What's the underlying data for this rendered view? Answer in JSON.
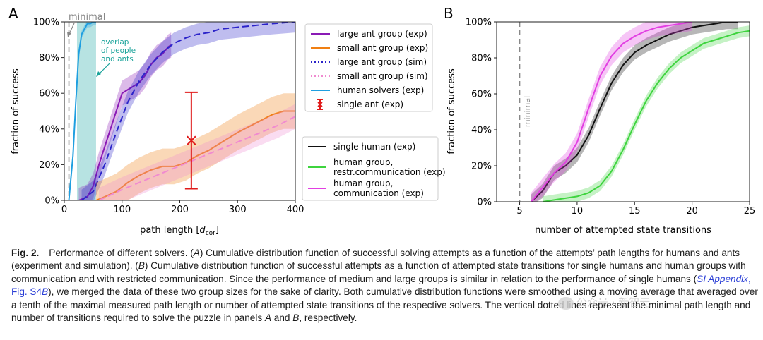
{
  "panelA": {
    "letter": "A",
    "ylabel": "fraction of success",
    "xlabel_prefix": "path length [",
    "xlabel_var": "d",
    "xlabel_sub": "cor",
    "xlabel_suffix": "]",
    "xticks": [
      "0",
      "100",
      "200",
      "300",
      "400"
    ],
    "yticks": [
      "0%",
      "20%",
      "40%",
      "60%",
      "80%",
      "100%"
    ],
    "minimal_label": "minimal",
    "overlap_lines": [
      "overlap",
      "of people",
      "and ants"
    ],
    "legend": [
      {
        "label": "large ant group (exp)",
        "color": "#8a1ab5",
        "style": "solid"
      },
      {
        "label": "small ant group (exp)",
        "color": "#f07f12",
        "style": "solid"
      },
      {
        "label": "large ant group (sim)",
        "color": "#2b23c9",
        "style": "dotted"
      },
      {
        "label": "small ant group (sim)",
        "color": "#f08ad0",
        "style": "dotted"
      },
      {
        "label": "human solvers (exp)",
        "color": "#1f9fe0",
        "style": "solid"
      },
      {
        "label": "single ant (exp)",
        "color": "#e01b1b",
        "style": "errorbar"
      }
    ],
    "chart_data": {
      "type": "line",
      "xlim": [
        0,
        400
      ],
      "ylim": [
        0,
        1
      ],
      "single_ant": {
        "x": 220,
        "y": 0.335,
        "low": 0.065,
        "high": 0.605
      },
      "minimal_x": 8,
      "overlap_range": [
        22,
        55
      ],
      "series": [
        {
          "name": "human solvers (exp)",
          "color": "#1f9fe0",
          "style": "solid",
          "x": [
            8,
            15,
            20,
            25,
            30,
            35,
            40,
            45,
            50,
            55
          ],
          "y": [
            0,
            0.25,
            0.55,
            0.82,
            0.93,
            0.96,
            0.99,
            0.99,
            1.0,
            1.0
          ],
          "band": 0.02
        },
        {
          "name": "large ant group (exp)",
          "color": "#8a1ab5",
          "style": "solid",
          "x": [
            25,
            40,
            50,
            60,
            70,
            80,
            90,
            100,
            110,
            120,
            130,
            140,
            150,
            160,
            170,
            180,
            185
          ],
          "y": [
            0,
            0.02,
            0.08,
            0.2,
            0.3,
            0.4,
            0.5,
            0.6,
            0.62,
            0.64,
            0.66,
            0.7,
            0.76,
            0.8,
            0.82,
            0.86,
            0.87
          ],
          "band": 0.07
        },
        {
          "name": "large ant group (sim)",
          "color": "#2b23c9",
          "style": "dashed",
          "x": [
            30,
            50,
            70,
            90,
            110,
            130,
            150,
            170,
            190,
            210,
            230,
            250,
            270,
            300,
            330,
            360,
            400
          ],
          "y": [
            0,
            0.05,
            0.2,
            0.38,
            0.55,
            0.67,
            0.76,
            0.83,
            0.88,
            0.91,
            0.93,
            0.94,
            0.96,
            0.97,
            0.98,
            0.99,
            1.0
          ],
          "band": 0.06
        },
        {
          "name": "small ant group (exp)",
          "color": "#f07f12",
          "style": "solid",
          "x": [
            55,
            70,
            90,
            110,
            130,
            150,
            170,
            190,
            210,
            230,
            250,
            270,
            300,
            330,
            360,
            380,
            400
          ],
          "y": [
            0,
            0.02,
            0.05,
            0.1,
            0.14,
            0.17,
            0.19,
            0.19,
            0.21,
            0.25,
            0.28,
            0.32,
            0.38,
            0.43,
            0.48,
            0.5,
            0.5
          ],
          "band": 0.1
        },
        {
          "name": "small ant group (sim)",
          "color": "#f08ad0",
          "style": "dashed",
          "x": [
            60,
            80,
            100,
            130,
            160,
            190,
            220,
            250,
            280,
            310,
            340,
            370,
            400
          ],
          "y": [
            0,
            0.03,
            0.06,
            0.1,
            0.14,
            0.18,
            0.22,
            0.26,
            0.3,
            0.34,
            0.38,
            0.42,
            0.47
          ],
          "band": 0.07
        }
      ]
    }
  },
  "panelB": {
    "letter": "B",
    "ylabel": "fraction of success",
    "xlabel": "number of attempted state transitions",
    "xticks": [
      "5",
      "10",
      "15",
      "20",
      "25"
    ],
    "yticks": [
      "0%",
      "20%",
      "40%",
      "60%",
      "80%",
      "100%"
    ],
    "minimal_label": "minimal",
    "legend": [
      {
        "label": "single human (exp)",
        "color": "#111111",
        "lines": [
          "single human (exp)"
        ]
      },
      {
        "label": "human group, restr.communication (exp)",
        "color": "#3ed43e",
        "lines": [
          "human group,",
          "restr.communication (exp)"
        ]
      },
      {
        "label": "human group, communication (exp)",
        "color": "#e23fe2",
        "lines": [
          "human group,",
          "communication (exp)"
        ]
      }
    ],
    "chart_data": {
      "type": "line",
      "xlim": [
        3,
        25
      ],
      "ylim": [
        0,
        1
      ],
      "minimal_x": 5,
      "series": [
        {
          "name": "single human (exp)",
          "color": "#111111",
          "x": [
            6,
            7,
            8,
            9,
            10,
            11,
            12,
            13,
            14,
            15,
            16,
            17,
            18,
            19,
            20,
            21,
            22,
            23,
            24
          ],
          "y": [
            0,
            0.06,
            0.16,
            0.2,
            0.26,
            0.37,
            0.52,
            0.66,
            0.76,
            0.83,
            0.87,
            0.9,
            0.93,
            0.95,
            0.97,
            0.98,
            0.99,
            1.0,
            1.0
          ],
          "band": 0.04
        },
        {
          "name": "human group, restr.communication (exp)",
          "color": "#3ed43e",
          "x": [
            7,
            8,
            9,
            10,
            11,
            12,
            13,
            14,
            15,
            16,
            17,
            18,
            19,
            20,
            21,
            22,
            23,
            24,
            25
          ],
          "y": [
            0,
            0.01,
            0.02,
            0.03,
            0.05,
            0.09,
            0.17,
            0.29,
            0.43,
            0.56,
            0.66,
            0.74,
            0.8,
            0.84,
            0.88,
            0.9,
            0.92,
            0.94,
            0.95
          ],
          "band": 0.03
        },
        {
          "name": "human group, communication (exp)",
          "color": "#e23fe2",
          "x": [
            6,
            7,
            8,
            9,
            10,
            11,
            12,
            13,
            14,
            15,
            16,
            17,
            18,
            19,
            20
          ],
          "y": [
            0,
            0.08,
            0.16,
            0.22,
            0.33,
            0.52,
            0.7,
            0.81,
            0.88,
            0.92,
            0.95,
            0.97,
            0.98,
            0.99,
            1.0
          ],
          "band": 0.05
        }
      ]
    }
  },
  "caption": {
    "label": "Fig. 2.",
    "t1": "Performance of different solvers. (",
    "t2": "A",
    "t3": ") Cumulative distribution function of successful solving attempts as a function of the attempts’ path lengths for humans and ants (experiment and simulation). (",
    "t4": "B",
    "t5": ") Cumulative distribution function of successful attempts as a function of attempted state transitions for single humans and human groups with communication and with restricted communication. Since the performance of medium and large groups is similar in relation to the performance of single humans (",
    "link1": "SI Appendix",
    "t6": ", Fig. S4",
    "link2": "B",
    "t7": "), we merged the data of these two group sizes for the sake of clarity. Both cumulative distribution functions were smoothed using a moving average that averaged over a tenth of the maximal measured path length or number of attempted state transitions of the respective solvers. The vertical dotted lines represent the minimal path length and number of transitions required to solve the puzzle in panels ",
    "t8": "A",
    "t9": " and ",
    "t10": "B",
    "t11": ", respectively."
  },
  "watermark": "公众号 · 新智元"
}
